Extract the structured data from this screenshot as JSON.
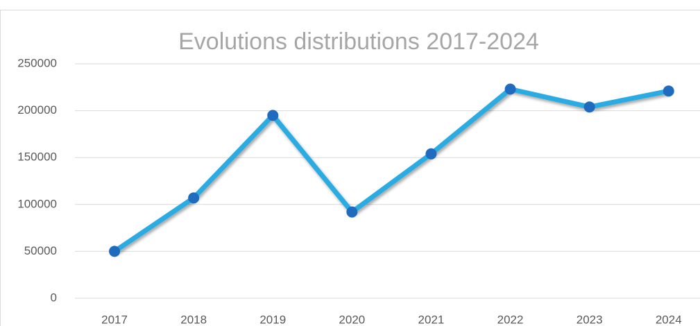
{
  "chart_data": {
    "type": "line",
    "title": "Evolutions distributions 2017-2024",
    "categories": [
      "2017",
      "2018",
      "2019",
      "2020",
      "2021",
      "2022",
      "2023",
      "2024"
    ],
    "values": [
      50000,
      107000,
      195000,
      92000,
      154000,
      223000,
      204000,
      221000
    ],
    "color": "#29abe2",
    "marker_color": "#1f6cbf",
    "ylim": [
      0,
      250000
    ],
    "yticks": [
      0,
      50000,
      100000,
      150000,
      200000,
      250000
    ],
    "grid": true
  }
}
